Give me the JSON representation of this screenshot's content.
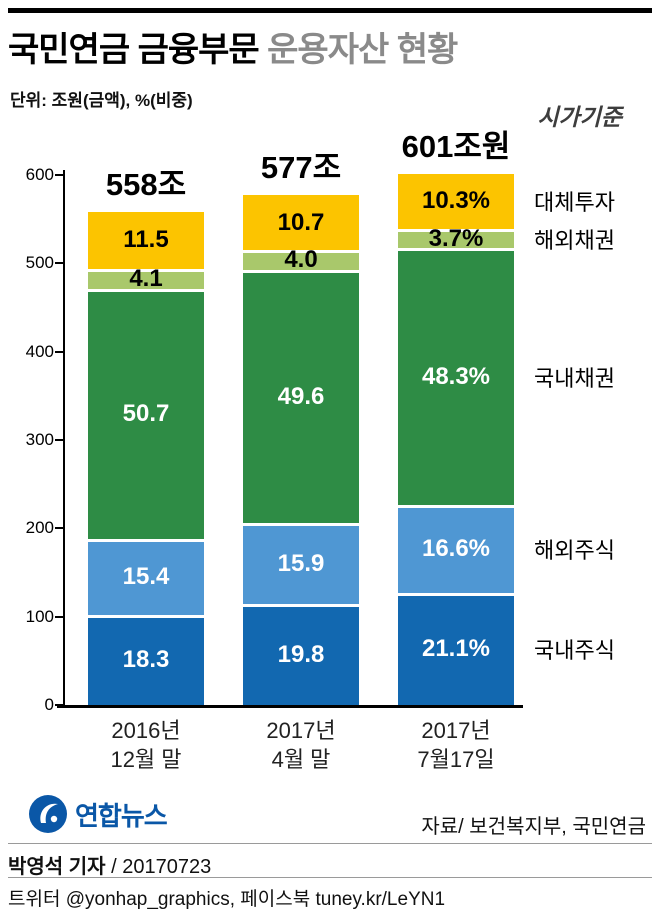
{
  "header": {
    "title_bold": "국민연금 금융부문",
    "title_rest": " 운용자산 현황",
    "unit_note": "단위: 조원(금액), %(비중)",
    "basis_note": "시가기준"
  },
  "chart_data": {
    "type": "bar",
    "stacked": true,
    "title": "국민연금 금융부문 운용자산 현황",
    "unit": "조원(금액), %(비중)",
    "ylim": [
      0,
      600
    ],
    "y_ticks": [
      0,
      100,
      200,
      300,
      400,
      500,
      600
    ],
    "grid": false,
    "legend_position": "right",
    "categories": [
      "2016년|12월 말",
      "2017년|4월 말",
      "2017년|7월17일"
    ],
    "totals": [
      "558조",
      "577조",
      "601조원"
    ],
    "total_values": [
      558,
      577,
      601
    ],
    "series": [
      {
        "key": "domestic-stocks",
        "name": "국내주식",
        "color": "#1268b0",
        "label_color": "#ffffff",
        "values": [
          18.3,
          19.8,
          21.1
        ],
        "labels": [
          "18.3",
          "19.8",
          "21.1%"
        ]
      },
      {
        "key": "overseas-stocks",
        "name": "해외주식",
        "color": "#4f97d3",
        "label_color": "#ffffff",
        "values": [
          15.4,
          15.9,
          16.6
        ],
        "labels": [
          "15.4",
          "15.9",
          "16.6%"
        ]
      },
      {
        "key": "domestic-bonds",
        "name": "국내채권",
        "color": "#2e8c45",
        "label_color": "#ffffff",
        "values": [
          50.7,
          49.6,
          48.3
        ],
        "labels": [
          "50.7",
          "49.6",
          "48.3%"
        ]
      },
      {
        "key": "overseas-bonds",
        "name": "해외채권",
        "color": "#a9c86b",
        "label_color": "#000000",
        "values": [
          4.1,
          4.0,
          3.7
        ],
        "labels": [
          "4.1",
          "4.0",
          "3.7%"
        ]
      },
      {
        "key": "alternative-investments",
        "name": "대체투자",
        "color": "#fcc400",
        "label_color": "#000000",
        "values": [
          11.5,
          10.7,
          10.3
        ],
        "labels": [
          "11.5",
          "10.7",
          "10.3%"
        ]
      }
    ]
  },
  "footer": {
    "logo_text": "연합뉴스",
    "source": "자료/ 보건복지부, 국민연금",
    "byline_name": "박영석 기자",
    "byline_rest": " / 20170723",
    "social": "트위터 @yonhap_graphics, 페이스북 tuney.kr/LeYN1"
  }
}
